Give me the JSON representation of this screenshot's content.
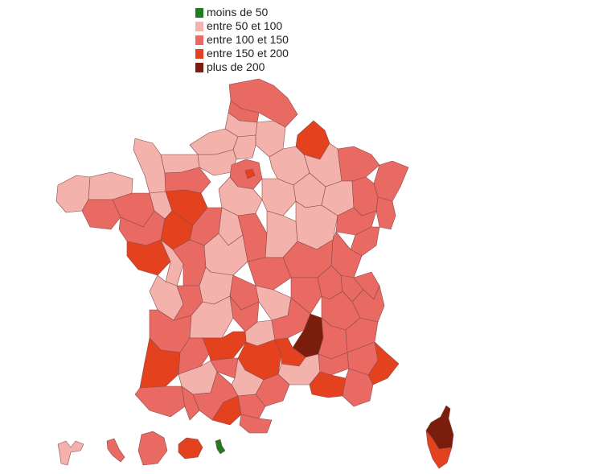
{
  "legend": {
    "items": [
      {
        "label": "moins de 50",
        "color": "#1e7d1e"
      },
      {
        "label": "entre 50 et 100",
        "color": "#f3b2ab"
      },
      {
        "label": "entre 100 et 150",
        "color": "#e86a63"
      },
      {
        "label": "entre 150 et 200",
        "color": "#e4411f"
      },
      {
        "label": "plus de 200",
        "color": "#7a1d0c"
      }
    ]
  },
  "regions": [
    {
      "name": "nord",
      "class": 2
    },
    {
      "name": "pas-de-calais",
      "class": 2
    },
    {
      "name": "somme",
      "class": 1
    },
    {
      "name": "aisne",
      "class": 1
    },
    {
      "name": "ardennes",
      "class": 3
    },
    {
      "name": "seine-maritime",
      "class": 1
    },
    {
      "name": "oise",
      "class": 1
    },
    {
      "name": "marne",
      "class": 1
    },
    {
      "name": "meuse",
      "class": 1
    },
    {
      "name": "moselle",
      "class": 2
    },
    {
      "name": "bas-rhin",
      "class": 2
    },
    {
      "name": "haut-rhin",
      "class": 2
    },
    {
      "name": "manche",
      "class": 1
    },
    {
      "name": "calvados",
      "class": 1
    },
    {
      "name": "eure",
      "class": 1
    },
    {
      "name": "orne",
      "class": 2
    },
    {
      "name": "paris-region",
      "class": 2
    },
    {
      "name": "paris",
      "class": 3
    },
    {
      "name": "finistere",
      "class": 1
    },
    {
      "name": "cotes-darmor",
      "class": 1
    },
    {
      "name": "morbihan",
      "class": 2
    },
    {
      "name": "ille-et-vilaine",
      "class": 2
    },
    {
      "name": "mayenne",
      "class": 1
    },
    {
      "name": "sarthe",
      "class": 3
    },
    {
      "name": "loire-atlantique",
      "class": 2
    },
    {
      "name": "maine-et-loire",
      "class": 3
    },
    {
      "name": "vendee",
      "class": 3
    },
    {
      "name": "loiret",
      "class": 1
    },
    {
      "name": "yonne",
      "class": 1
    },
    {
      "name": "aube",
      "class": 1
    },
    {
      "name": "haute-marne",
      "class": 1
    },
    {
      "name": "vosges",
      "class": 2
    },
    {
      "name": "indre-et-loire",
      "class": 2
    },
    {
      "name": "loir-et-cher",
      "class": 1
    },
    {
      "name": "cher",
      "class": 2
    },
    {
      "name": "nievre",
      "class": 1
    },
    {
      "name": "cote-dor",
      "class": 1
    },
    {
      "name": "haute-saone",
      "class": 2
    },
    {
      "name": "doubs",
      "class": 2
    },
    {
      "name": "deux-sevres",
      "class": 1
    },
    {
      "name": "vienne",
      "class": 2
    },
    {
      "name": "indre",
      "class": 1
    },
    {
      "name": "allier",
      "class": 2
    },
    {
      "name": "saone-et-loire",
      "class": 2
    },
    {
      "name": "jura",
      "class": 2
    },
    {
      "name": "charente-maritime",
      "class": 1
    },
    {
      "name": "charente",
      "class": 2
    },
    {
      "name": "haute-vienne",
      "class": 1
    },
    {
      "name": "creuse",
      "class": 2
    },
    {
      "name": "puy-de-dome",
      "class": 1
    },
    {
      "name": "loire",
      "class": 2
    },
    {
      "name": "rhone",
      "class": 2
    },
    {
      "name": "ain",
      "class": 2
    },
    {
      "name": "haute-savoie",
      "class": 2
    },
    {
      "name": "savoie",
      "class": 2
    },
    {
      "name": "gironde",
      "class": 2
    },
    {
      "name": "dordogne",
      "class": 1
    },
    {
      "name": "correze",
      "class": 2
    },
    {
      "name": "cantal",
      "class": 1
    },
    {
      "name": "haute-loire",
      "class": 2
    },
    {
      "name": "ardeche",
      "class": 4
    },
    {
      "name": "isere",
      "class": 2
    },
    {
      "name": "drome",
      "class": 2
    },
    {
      "name": "hautes-alpes",
      "class": 2
    },
    {
      "name": "landes",
      "class": 3
    },
    {
      "name": "lot-et-garonne",
      "class": 2
    },
    {
      "name": "lot",
      "class": 3
    },
    {
      "name": "aveyron",
      "class": 3
    },
    {
      "name": "lozere",
      "class": 3
    },
    {
      "name": "gard",
      "class": 1
    },
    {
      "name": "vaucluse",
      "class": 2
    },
    {
      "name": "alpes-de-haute-provence",
      "class": 2
    },
    {
      "name": "alpes-maritimes",
      "class": 3
    },
    {
      "name": "gers",
      "class": 1
    },
    {
      "name": "tarn-et-garonne",
      "class": 2
    },
    {
      "name": "tarn",
      "class": 1
    },
    {
      "name": "herault",
      "class": 2
    },
    {
      "name": "bouches-du-rhone",
      "class": 3
    },
    {
      "name": "var",
      "class": 2
    },
    {
      "name": "pyrenees-atlantiques",
      "class": 2
    },
    {
      "name": "hautes-pyrenees",
      "class": 2
    },
    {
      "name": "haute-garonne",
      "class": 2
    },
    {
      "name": "ariege",
      "class": 3
    },
    {
      "name": "aude",
      "class": 2
    },
    {
      "name": "pyrenees-orientales",
      "class": 2
    },
    {
      "name": "haute-corse",
      "class": 4
    },
    {
      "name": "corse-du-sud",
      "class": 3
    },
    {
      "name": "guadeloupe",
      "class": 1
    },
    {
      "name": "martinique",
      "class": 2
    },
    {
      "name": "guyane",
      "class": 2
    },
    {
      "name": "la-reunion",
      "class": 3
    },
    {
      "name": "mayotte",
      "class": 0
    }
  ]
}
